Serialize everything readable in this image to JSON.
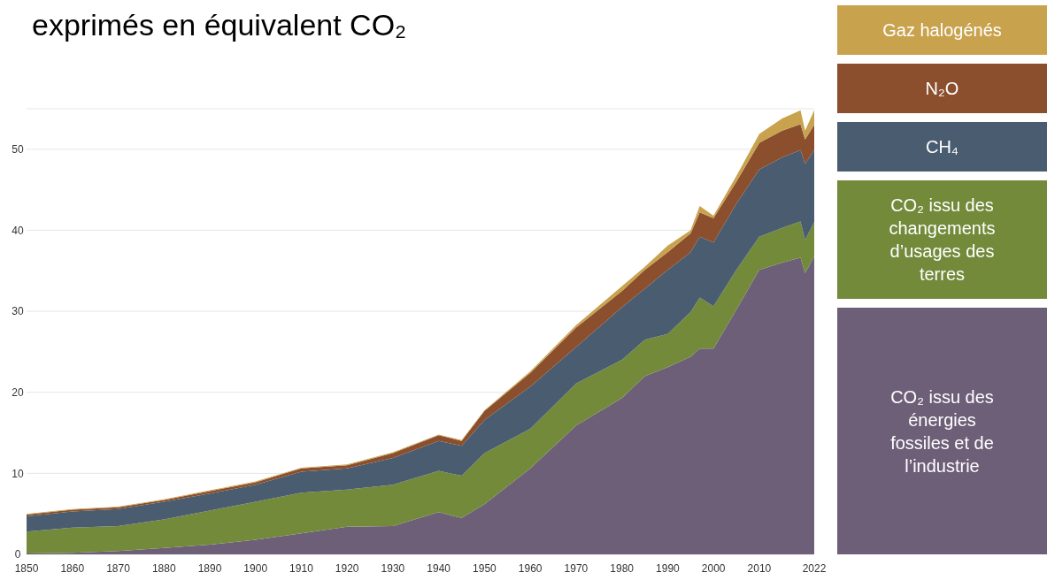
{
  "chart_data": {
    "type": "area",
    "stacked": true,
    "title": "exprimés en équivalent CO₂",
    "x": [
      1850,
      1860,
      1870,
      1880,
      1890,
      1900,
      1910,
      1920,
      1930,
      1940,
      1945,
      1950,
      1960,
      1970,
      1980,
      1985,
      1990,
      1995,
      1997,
      2000,
      2005,
      2010,
      2015,
      2019,
      2020,
      2022
    ],
    "series": [
      {
        "name": "CO₂ issu des énergies fossiles et de l’industrie",
        "color": "#6d5f78",
        "values": [
          0.1,
          0.2,
          0.4,
          0.8,
          1.2,
          1.8,
          2.6,
          3.4,
          3.5,
          5.2,
          4.5,
          6.2,
          10.6,
          15.9,
          19.3,
          22.0,
          23.1,
          24.4,
          25.4,
          25.4,
          30.2,
          35.1,
          36.0,
          36.6,
          34.7,
          36.8
        ]
      },
      {
        "name": "CO₂ issu des changements d’usages des terres",
        "color": "#738a3a",
        "values": [
          2.7,
          3.1,
          3.1,
          3.5,
          4.2,
          4.7,
          5.0,
          4.6,
          5.1,
          5.1,
          5.2,
          6.3,
          4.9,
          5.2,
          4.7,
          4.5,
          4.1,
          5.5,
          6.3,
          5.2,
          4.9,
          4.1,
          4.3,
          4.5,
          4.1,
          4.2
        ]
      },
      {
        "name": "CH₄",
        "color": "#4a5d70",
        "values": [
          1.9,
          2.0,
          2.1,
          2.2,
          2.1,
          2.1,
          2.6,
          2.6,
          3.3,
          3.7,
          3.7,
          4.1,
          5.2,
          4.5,
          6.5,
          6.3,
          7.9,
          7.4,
          7.5,
          7.9,
          8.2,
          8.3,
          8.7,
          8.8,
          9.4,
          8.9
        ]
      },
      {
        "name": "N₂O",
        "color": "#8b4f2e",
        "values": [
          0.2,
          0.2,
          0.2,
          0.2,
          0.3,
          0.3,
          0.4,
          0.4,
          0.6,
          0.7,
          0.6,
          1.1,
          1.7,
          2.4,
          2.0,
          2.3,
          2.2,
          2.3,
          3.0,
          3.0,
          2.7,
          3.3,
          3.3,
          3.2,
          3.0,
          3.1
        ]
      },
      {
        "name": "Gaz halogénés",
        "color": "#c9a24e",
        "values": [
          0.1,
          0.1,
          0.1,
          0.1,
          0.1,
          0.1,
          0.1,
          0.1,
          0.1,
          0.1,
          0.1,
          0.1,
          0.2,
          0.3,
          0.6,
          0.4,
          0.8,
          0.4,
          0.8,
          0.3,
          0.7,
          1.1,
          1.5,
          1.7,
          1.1,
          1.8
        ]
      }
    ],
    "xlim": [
      1850,
      2022
    ],
    "xticks": [
      1850,
      1860,
      1870,
      1880,
      1890,
      1900,
      1910,
      1920,
      1930,
      1940,
      1950,
      1960,
      1970,
      1980,
      1990,
      2000,
      2010,
      2022
    ],
    "ylim": [
      0,
      55
    ],
    "yticks": [
      0,
      10,
      20,
      30,
      40,
      50,
      {
        "value": 55,
        "label": null
      }
    ],
    "grid": "y",
    "legend": "right"
  }
}
